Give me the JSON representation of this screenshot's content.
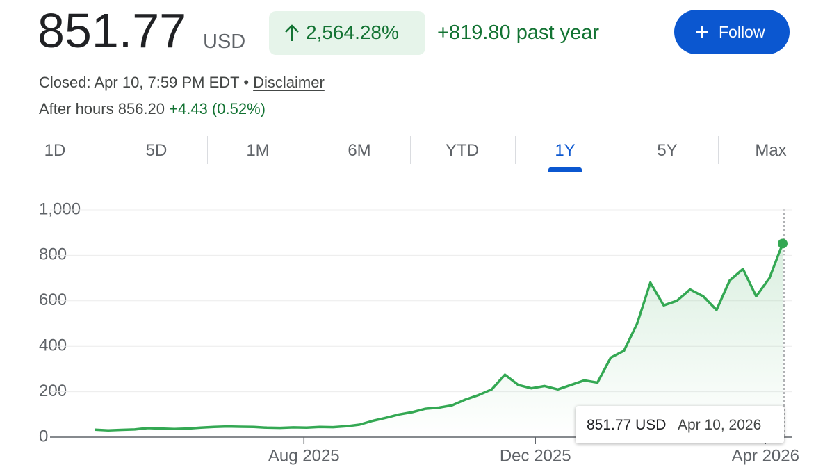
{
  "header": {
    "price": "851.77",
    "currency": "USD",
    "change_percent": "2,564.28%",
    "change_text": "+819.80 past year",
    "follow_button": "Follow"
  },
  "status": {
    "closed": "Closed: Apr 10, 7:59 PM EDT",
    "separator": "•",
    "disclaimer": "Disclaimer",
    "after_hours_label": "After hours 856.20",
    "after_hours_change": "+4.43 (0.52%)"
  },
  "tabs": {
    "items": [
      "1D",
      "5D",
      "1M",
      "6M",
      "YTD",
      "1Y",
      "5Y",
      "Max"
    ],
    "selected": "1Y"
  },
  "tooltip": {
    "price": "851.77 USD",
    "date": "Apr 10, 2026"
  },
  "chart_data": {
    "type": "line",
    "x": [
      0,
      1,
      2,
      3,
      4,
      5,
      6,
      7,
      8,
      9,
      10,
      11,
      12,
      13,
      14,
      15,
      16,
      17,
      18,
      19,
      20,
      21,
      22,
      23,
      24,
      25,
      26,
      27,
      28,
      29,
      30,
      31,
      32,
      33,
      34,
      35,
      36,
      37,
      38,
      39,
      40,
      41,
      42,
      43,
      44,
      45,
      46,
      47,
      48,
      49,
      50,
      51,
      52
    ],
    "series": [
      {
        "color": "#34a853",
        "values": [
          33,
          30,
          32,
          34,
          40,
          38,
          36,
          38,
          42,
          45,
          47,
          46,
          45,
          42,
          41,
          43,
          42,
          45,
          44,
          48,
          55,
          72,
          85,
          100,
          110,
          125,
          130,
          140,
          165,
          185,
          210,
          275,
          230,
          215,
          225,
          210,
          230,
          250,
          240,
          350,
          380,
          500,
          680,
          580,
          600,
          650,
          620,
          560,
          690,
          740,
          620,
          700,
          851.77
        ]
      }
    ],
    "xlim": [
      -3.4,
      52
    ],
    "xticks": [
      {
        "value": 15.8,
        "label": "Aug 2025"
      },
      {
        "value": 33.3,
        "label": "Dec 2025"
      },
      {
        "value": 50.7,
        "label": "Apr 2026"
      }
    ],
    "ylim": [
      0,
      1000
    ],
    "yticks": [
      0,
      200,
      400,
      600,
      800,
      {
        "value": 1000,
        "label": "1,000"
      }
    ],
    "grid": true
  }
}
